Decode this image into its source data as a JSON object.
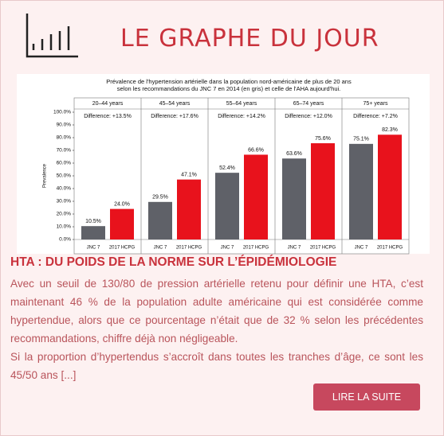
{
  "header": {
    "title": "LE GRAPHE DU JOUR"
  },
  "chart_data": {
    "type": "bar",
    "title": [
      "Prévalence de l'hypertension artérielle dans la population nord-américaine de plus de 20 ans",
      "selon les recommandations du JNC 7 en 2014 (en gris) et celle de l'AHA aujourd'hui."
    ],
    "y_label": "Prevalence",
    "categories": [
      "20–44 years",
      "45–54 years",
      "55–64 years",
      "65–74 years",
      "75+ years"
    ],
    "annotations": [
      "Difference: +13.5%",
      "Difference: +17.6%",
      "Difference: +14.2%",
      "Difference: +12.0%",
      "Difference: +7.2%"
    ],
    "series": [
      {
        "name": "JNC 7",
        "color": "#5f6168",
        "values": [
          10.5,
          29.5,
          52.4,
          63.6,
          75.1
        ],
        "value_labels": [
          "10.5%",
          "29.5%",
          "52.4%",
          "63.6%",
          "75.1%"
        ]
      },
      {
        "name": "2017 HCPG",
        "color": "#e8121c",
        "values": [
          24.0,
          47.1,
          66.6,
          75.6,
          82.3
        ],
        "value_labels": [
          "24.0%",
          "47.1%",
          "66.6%",
          "75.6%",
          "82.3%"
        ]
      }
    ],
    "ylim": [
      0,
      100
    ],
    "yticks": [
      {
        "value": 0,
        "label": "0.0%"
      },
      {
        "value": 10,
        "label": "10.0%"
      },
      {
        "value": 20,
        "label": "20.0%"
      },
      {
        "value": 30,
        "label": "30.0%"
      },
      {
        "value": 40,
        "label": "40.0%"
      },
      {
        "value": 50,
        "label": "50.0%"
      },
      {
        "value": 60,
        "label": "60.0%"
      },
      {
        "value": 70,
        "label": "70.0%"
      },
      {
        "value": 80,
        "label": "80.0%"
      },
      {
        "value": 90,
        "label": "90.0%"
      },
      {
        "value": 100,
        "label": "100.0%"
      }
    ],
    "grid": false
  },
  "article": {
    "heading": "HTA : DU POIDS DE LA NORME SUR L’ÉPIDÉMIOLOGIE",
    "paragraphs": [
      "Avec un seuil de 130/80 de pression artérielle retenu pour définir une HTA, c’est maintenant 46 % de la population adulte américaine qui est considérée comme hypertendue, alors que ce pourcentage n’était que de 32 % selon les précédentes recommandations, chiffre déjà non négligeable.",
      "Si la proportion d’hypertendus s’accroît dans toutes les tranches d’âge, ce sont les 45/50 ans [...]"
    ],
    "button": "LIRE LA SUITE"
  }
}
